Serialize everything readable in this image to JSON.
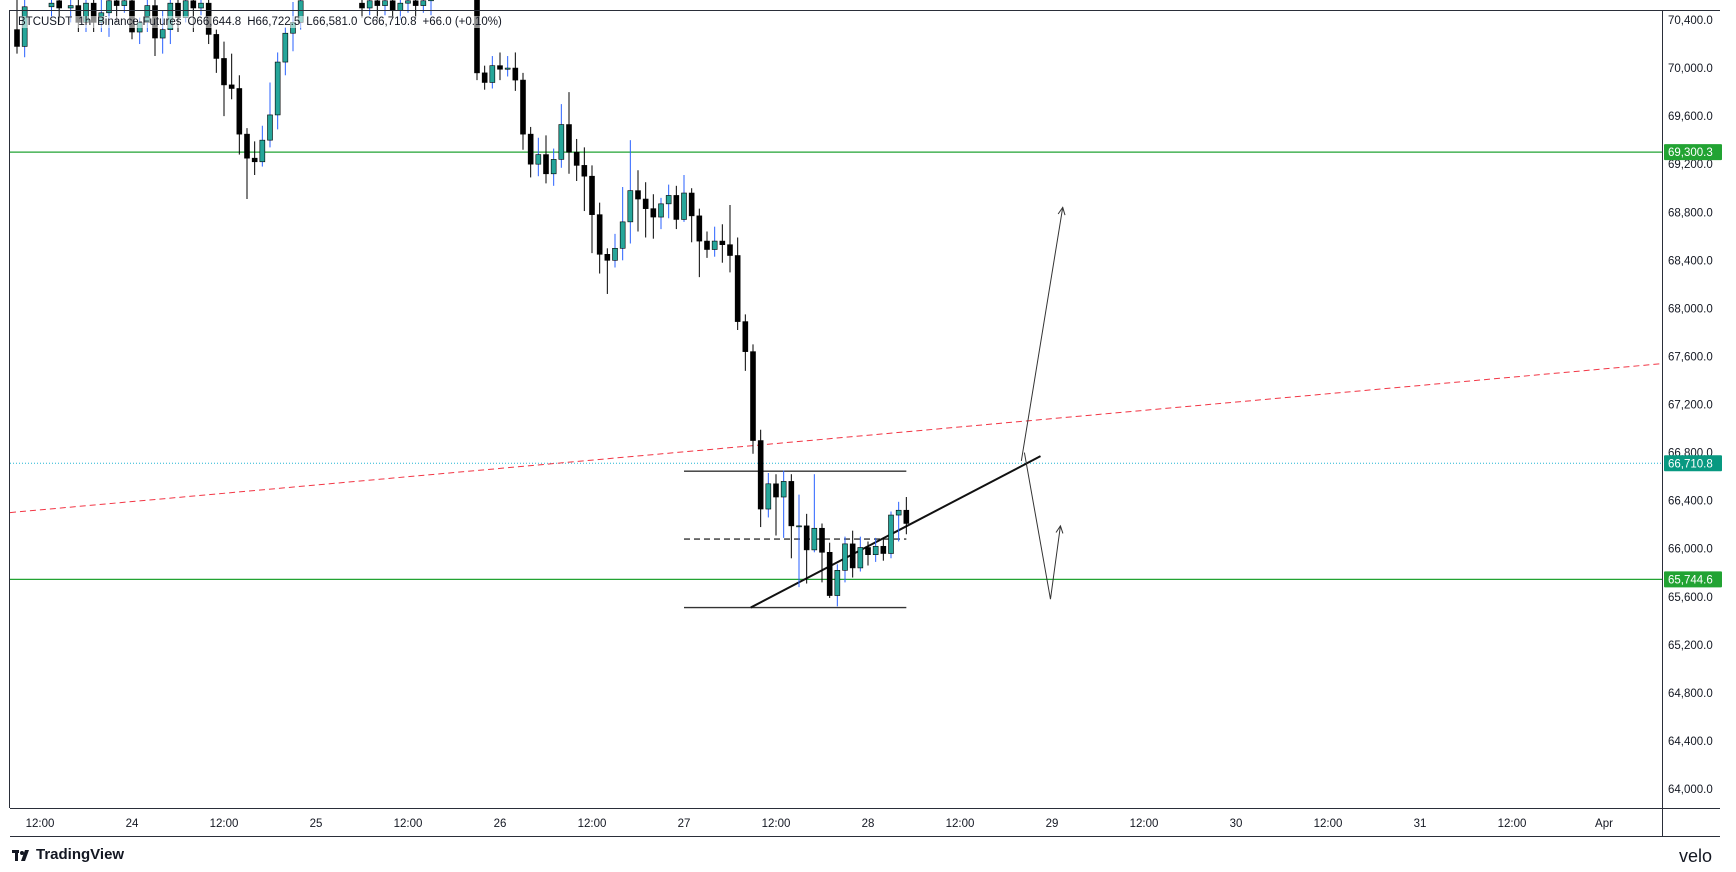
{
  "header": {
    "symbol": "BTCUSDT",
    "interval": "1h",
    "exchange": "Binance-Futures",
    "open": "O66,644.8",
    "high": "H66,722.5",
    "low": "L66,581.0",
    "close": "C66,710.8",
    "change": "+66.0 (+0.10%)"
  },
  "branding": {
    "left": "TradingView",
    "right": "velo"
  },
  "colors": {
    "up": "#26a69a",
    "down": "#000000",
    "wick_up": "#2962ff",
    "support_line": "#22a333",
    "trend_red": "#f23645",
    "price_tag": "#089981",
    "current_price_line": "#22b5d3"
  },
  "chart_data": {
    "type": "candlestick",
    "title": "",
    "xlabel": "",
    "ylabel": "",
    "ylim": [
      63600,
      70600
    ],
    "y_ticks": [
      "70,400.0",
      "70,000.0",
      "69,600.0",
      "69,200.0",
      "68,800.0",
      "68,400.0",
      "68,000.0",
      "67,600.0",
      "67,200.0",
      "66,800.0",
      "66,400.0",
      "66,000.0",
      "65,600.0",
      "65,200.0",
      "64,800.0",
      "64,400.0",
      "64,000.0"
    ],
    "y_tick_values": [
      70400,
      70000,
      69600,
      69200,
      68800,
      68400,
      68000,
      67600,
      67200,
      66800,
      66400,
      66000,
      65600,
      65200,
      64800,
      64400,
      64000
    ],
    "x_ticks": [
      "12:00",
      "24",
      "12:00",
      "25",
      "12:00",
      "26",
      "12:00",
      "27",
      "12:00",
      "28",
      "12:00",
      "29",
      "12:00",
      "30",
      "12:00",
      "31",
      "12:00",
      "Apr"
    ],
    "x_tick_hours": [
      -36,
      -24,
      -12,
      0,
      12,
      24,
      36,
      48,
      60,
      72,
      84,
      96,
      108,
      120,
      132,
      144,
      156,
      168
    ],
    "grid": false,
    "price_labels": [
      {
        "label": "69,300.3",
        "value": 69300.3,
        "color": "#22a333"
      },
      {
        "label": "66,710.8",
        "value": 66710.8,
        "color": "#089981"
      },
      {
        "label": "65,744.6",
        "value": 65744.6,
        "color": "#22a333"
      }
    ],
    "horizontal_lines": [
      {
        "value": 69300.3,
        "style": "solid",
        "color": "#22a333",
        "from_hour": -40,
        "to_hour": 186
      },
      {
        "value": 65744.6,
        "style": "solid",
        "color": "#22a333",
        "from_hour": -40,
        "to_hour": 186
      },
      {
        "value": 66710.8,
        "style": "dotted",
        "color": "#22b5d3",
        "from_hour": -40,
        "to_hour": 186
      },
      {
        "value": 66645,
        "style": "solid",
        "color": "#333333",
        "from_hour": 48,
        "to_hour": 77
      },
      {
        "value": 66080,
        "style": "dashed",
        "color": "#333333",
        "from_hour": 48,
        "to_hour": 77
      },
      {
        "value": 65510,
        "style": "solid",
        "color": "#333333",
        "from_hour": 48,
        "to_hour": 77
      }
    ],
    "trend_lines": [
      {
        "from": [
          -40,
          66300
        ],
        "to": [
          186,
          67600
        ],
        "style": "dashed",
        "color": "#f23645",
        "width": 1
      },
      {
        "from": [
          56.7,
          65510
        ],
        "to": [
          94.5,
          66770
        ],
        "style": "solid",
        "color": "#111111",
        "width": 2
      }
    ],
    "projection_arrows": [
      {
        "points": [
          [
            92,
            66730
          ],
          [
            97.4,
            68840
          ]
        ],
        "arrow_end": true
      },
      {
        "points": [
          [
            92.4,
            66800
          ],
          [
            95.8,
            65580
          ],
          [
            97.1,
            66190
          ]
        ],
        "arrow_end": true
      }
    ],
    "candles": [
      {
        "t": -39,
        "o": 70320,
        "h": 70640,
        "c": 70180,
        "l": 70120
      },
      {
        "t": -38,
        "o": 70180,
        "h": 70590,
        "c": 70510,
        "l": 70090
      },
      {
        "t": -34.5,
        "o": 70510,
        "h": 70640,
        "c": 70540,
        "l": 70420
      },
      {
        "t": -33.5,
        "o": 70560,
        "h": 70640,
        "c": 70500,
        "l": 70380
      },
      {
        "t": -32,
        "o": 70500,
        "h": 70620,
        "c": 70520,
        "l": 70380
      },
      {
        "t": -31,
        "o": 70520,
        "h": 70620,
        "c": 70380,
        "l": 70300
      },
      {
        "t": -30,
        "o": 70380,
        "h": 70600,
        "c": 70540,
        "l": 70300
      },
      {
        "t": -29,
        "o": 70540,
        "h": 70640,
        "c": 70380,
        "l": 70300
      },
      {
        "t": -28,
        "o": 70380,
        "h": 70620,
        "c": 70460,
        "l": 70300
      },
      {
        "t": -27,
        "o": 70460,
        "h": 70600,
        "c": 70560,
        "l": 70260
      },
      {
        "t": -26,
        "o": 70560,
        "h": 70640,
        "c": 70520,
        "l": 70380
      },
      {
        "t": -25,
        "o": 70520,
        "h": 70640,
        "c": 70560,
        "l": 70460
      },
      {
        "t": -24,
        "o": 70560,
        "h": 70640,
        "c": 70300,
        "l": 70240
      },
      {
        "t": -23,
        "o": 70300,
        "h": 70420,
        "c": 70380,
        "l": 70200
      },
      {
        "t": -22,
        "o": 70380,
        "h": 70600,
        "c": 70520,
        "l": 70300
      },
      {
        "t": -21,
        "o": 70520,
        "h": 70620,
        "c": 70250,
        "l": 70100
      },
      {
        "t": -20,
        "o": 70250,
        "h": 70480,
        "c": 70320,
        "l": 70120
      },
      {
        "t": -19,
        "o": 70320,
        "h": 70590,
        "c": 70540,
        "l": 70200
      },
      {
        "t": -18,
        "o": 70540,
        "h": 70640,
        "c": 70420,
        "l": 70300
      },
      {
        "t": -17,
        "o": 70420,
        "h": 70640,
        "c": 70560,
        "l": 70380
      },
      {
        "t": -16,
        "o": 70560,
        "h": 70640,
        "c": 70500,
        "l": 70300
      },
      {
        "t": -15,
        "o": 70500,
        "h": 70600,
        "c": 70540,
        "l": 70440
      },
      {
        "t": -14,
        "o": 70540,
        "h": 70640,
        "c": 70280,
        "l": 70200
      },
      {
        "t": -13,
        "o": 70280,
        "h": 70320,
        "c": 70080,
        "l": 69960
      },
      {
        "t": -12,
        "o": 70080,
        "h": 70220,
        "c": 69860,
        "l": 69600
      },
      {
        "t": -11,
        "o": 69860,
        "h": 70120,
        "c": 69830,
        "l": 69740
      },
      {
        "t": -10,
        "o": 69830,
        "h": 69940,
        "c": 69450,
        "l": 69280
      },
      {
        "t": -9,
        "o": 69450,
        "h": 69500,
        "c": 69250,
        "l": 68910
      },
      {
        "t": -8,
        "o": 69250,
        "h": 69390,
        "c": 69220,
        "l": 69110
      },
      {
        "t": -7,
        "o": 69220,
        "h": 69520,
        "c": 69400,
        "l": 69180
      },
      {
        "t": -6,
        "o": 69400,
        "h": 69880,
        "c": 69610,
        "l": 69340
      },
      {
        "t": -5,
        "o": 69610,
        "h": 70130,
        "c": 70050,
        "l": 69490
      },
      {
        "t": -4,
        "o": 70050,
        "h": 70340,
        "c": 70290,
        "l": 69940
      },
      {
        "t": -3,
        "o": 70290,
        "h": 70550,
        "c": 70380,
        "l": 70140
      },
      {
        "t": -2,
        "o": 70380,
        "h": 70640,
        "c": 70560,
        "l": 70320
      },
      {
        "t": 6,
        "o": 70540,
        "h": 70620,
        "c": 70500,
        "l": 70420
      },
      {
        "t": 7,
        "o": 70500,
        "h": 70600,
        "c": 70560,
        "l": 70440
      },
      {
        "t": 8,
        "o": 70560,
        "h": 70640,
        "c": 70520,
        "l": 70400
      },
      {
        "t": 9,
        "o": 70520,
        "h": 70640,
        "c": 70560,
        "l": 70440
      },
      {
        "t": 10,
        "o": 70560,
        "h": 70640,
        "c": 70480,
        "l": 70420
      },
      {
        "t": 11,
        "o": 70480,
        "h": 70600,
        "c": 70540,
        "l": 70400
      },
      {
        "t": 12,
        "o": 70540,
        "h": 70640,
        "c": 70560,
        "l": 70460
      },
      {
        "t": 13,
        "o": 70560,
        "h": 70640,
        "c": 70520,
        "l": 70420
      },
      {
        "t": 14,
        "o": 70520,
        "h": 70620,
        "c": 70560,
        "l": 70460
      },
      {
        "t": 15,
        "o": 70560,
        "h": 70640,
        "c": 70580,
        "l": 70440
      },
      {
        "t": 21,
        "o": 70640,
        "h": 70640,
        "c": 69960,
        "l": 69900
      },
      {
        "t": 22,
        "o": 69960,
        "h": 70020,
        "c": 69880,
        "l": 69820
      },
      {
        "t": 23,
        "o": 69880,
        "h": 70100,
        "c": 70020,
        "l": 69830
      },
      {
        "t": 24,
        "o": 70020,
        "h": 70130,
        "c": 69990,
        "l": 69900
      },
      {
        "t": 25,
        "o": 69990,
        "h": 70100,
        "c": 70000,
        "l": 69930
      },
      {
        "t": 26,
        "o": 70000,
        "h": 70130,
        "c": 69900,
        "l": 69810
      },
      {
        "t": 27,
        "o": 69900,
        "h": 69960,
        "c": 69450,
        "l": 69320
      },
      {
        "t": 28,
        "o": 69450,
        "h": 69510,
        "c": 69200,
        "l": 69090
      },
      {
        "t": 29,
        "o": 69200,
        "h": 69420,
        "c": 69280,
        "l": 69100
      },
      {
        "t": 30,
        "o": 69280,
        "h": 69440,
        "c": 69120,
        "l": 69040
      },
      {
        "t": 31,
        "o": 69120,
        "h": 69330,
        "c": 69240,
        "l": 69020
      },
      {
        "t": 32,
        "o": 69240,
        "h": 69700,
        "c": 69530,
        "l": 69170
      },
      {
        "t": 33,
        "o": 69530,
        "h": 69800,
        "c": 69300,
        "l": 69120
      },
      {
        "t": 34,
        "o": 69300,
        "h": 69410,
        "c": 69190,
        "l": 69060
      },
      {
        "t": 35,
        "o": 69190,
        "h": 69340,
        "c": 69100,
        "l": 68810
      },
      {
        "t": 36,
        "o": 69100,
        "h": 69190,
        "c": 68780,
        "l": 68460
      },
      {
        "t": 37,
        "o": 68780,
        "h": 68880,
        "c": 68450,
        "l": 68290
      },
      {
        "t": 38,
        "o": 68450,
        "h": 68500,
        "c": 68400,
        "l": 68120
      },
      {
        "t": 39,
        "o": 68400,
        "h": 68620,
        "c": 68500,
        "l": 68340
      },
      {
        "t": 40,
        "o": 68500,
        "h": 69010,
        "c": 68720,
        "l": 68400
      },
      {
        "t": 41,
        "o": 68720,
        "h": 69400,
        "c": 68980,
        "l": 68540
      },
      {
        "t": 42,
        "o": 68980,
        "h": 69150,
        "c": 68910,
        "l": 68640
      },
      {
        "t": 43,
        "o": 68910,
        "h": 69050,
        "c": 68830,
        "l": 68590
      },
      {
        "t": 44,
        "o": 68830,
        "h": 68950,
        "c": 68760,
        "l": 68580
      },
      {
        "t": 45,
        "o": 68760,
        "h": 68920,
        "c": 68870,
        "l": 68660
      },
      {
        "t": 46,
        "o": 68870,
        "h": 69030,
        "c": 68940,
        "l": 68750
      },
      {
        "t": 47,
        "o": 68940,
        "h": 69020,
        "c": 68740,
        "l": 68660
      },
      {
        "t": 48,
        "o": 68740,
        "h": 69110,
        "c": 68960,
        "l": 68720
      },
      {
        "t": 49,
        "o": 68960,
        "h": 69000,
        "c": 68770,
        "l": 68550
      },
      {
        "t": 50,
        "o": 68770,
        "h": 68830,
        "c": 68560,
        "l": 68260
      },
      {
        "t": 51,
        "o": 68560,
        "h": 68640,
        "c": 68490,
        "l": 68420
      },
      {
        "t": 52,
        "o": 68490,
        "h": 68680,
        "c": 68560,
        "l": 68430
      },
      {
        "t": 53,
        "o": 68560,
        "h": 68700,
        "c": 68530,
        "l": 68380
      },
      {
        "t": 54,
        "o": 68530,
        "h": 68860,
        "c": 68440,
        "l": 68300
      },
      {
        "t": 55,
        "o": 68440,
        "h": 68590,
        "c": 67890,
        "l": 67820
      },
      {
        "t": 56,
        "o": 67890,
        "h": 67950,
        "c": 67640,
        "l": 67480
      },
      {
        "t": 57,
        "o": 67640,
        "h": 67700,
        "c": 66900,
        "l": 66790
      },
      {
        "t": 58,
        "o": 66900,
        "h": 66990,
        "c": 66330,
        "l": 66180
      },
      {
        "t": 59,
        "o": 66330,
        "h": 66630,
        "c": 66540,
        "l": 66260
      },
      {
        "t": 60,
        "o": 66540,
        "h": 66620,
        "c": 66430,
        "l": 66110
      },
      {
        "t": 61,
        "o": 66430,
        "h": 66650,
        "c": 66560,
        "l": 66090
      },
      {
        "t": 62,
        "o": 66560,
        "h": 66620,
        "c": 66190,
        "l": 65920
      },
      {
        "t": 63,
        "o": 66190,
        "h": 66450,
        "c": 66190,
        "l": 65680
      },
      {
        "t": 64,
        "o": 66190,
        "h": 66290,
        "c": 65990,
        "l": 65710
      },
      {
        "t": 65,
        "o": 65990,
        "h": 66620,
        "c": 66170,
        "l": 65970
      },
      {
        "t": 66,
        "o": 66170,
        "h": 66210,
        "c": 65970,
        "l": 65720
      },
      {
        "t": 67,
        "o": 65970,
        "h": 66050,
        "c": 65610,
        "l": 65590
      },
      {
        "t": 68,
        "o": 65610,
        "h": 65870,
        "c": 65820,
        "l": 65520
      },
      {
        "t": 69,
        "o": 65820,
        "h": 66100,
        "c": 66040,
        "l": 65720
      },
      {
        "t": 70,
        "o": 66040,
        "h": 66150,
        "c": 65840,
        "l": 65760
      },
      {
        "t": 71,
        "o": 65840,
        "h": 66100,
        "c": 66010,
        "l": 65810
      },
      {
        "t": 72,
        "o": 66010,
        "h": 66060,
        "c": 65950,
        "l": 65860
      },
      {
        "t": 73,
        "o": 65950,
        "h": 66090,
        "c": 66020,
        "l": 65890
      },
      {
        "t": 74,
        "o": 66020,
        "h": 66090,
        "c": 65960,
        "l": 65900
      },
      {
        "t": 75,
        "o": 65960,
        "h": 66310,
        "c": 66280,
        "l": 65920
      },
      {
        "t": 76,
        "o": 66280,
        "h": 66390,
        "c": 66320,
        "l": 66060
      },
      {
        "t": 77,
        "o": 66320,
        "h": 66430,
        "c": 66210,
        "l": 66120
      }
    ]
  }
}
